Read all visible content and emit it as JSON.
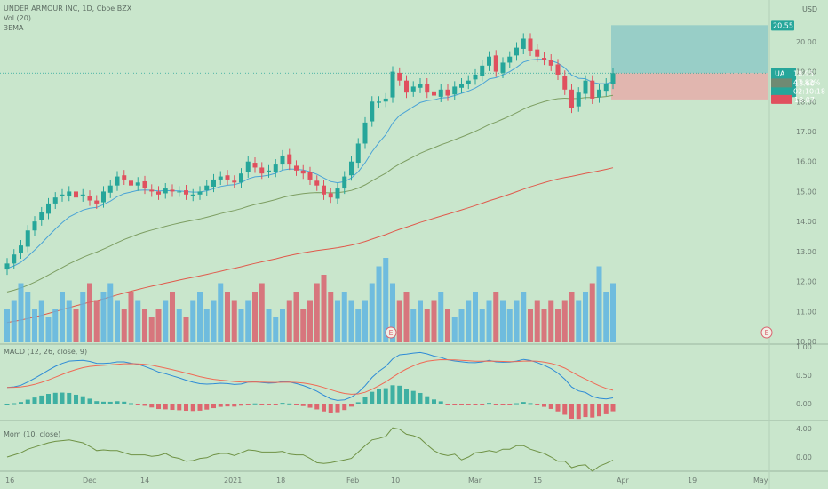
{
  "legend": {
    "symbol": "UNDER ARMOUR INC, 1D, Cboe BZX",
    "vol": "Vol (20)",
    "ema": "3EMA",
    "macd": "MACD (12, 26, close, 9)",
    "mom": "Mom (10, close)"
  },
  "price_axis": {
    "currency": "USD",
    "ticks": [
      "20.00",
      "19.00",
      "18.00",
      "17.00",
      "16.00",
      "15.00",
      "14.00",
      "13.00",
      "12.00",
      "11.00",
      "10.00"
    ],
    "tags": {
      "target": "20.55",
      "symbol": "UA",
      "last": "18.95",
      "change": "47.82%",
      "countdown": "02:10:18",
      "ema_value": "18.60",
      "stop": "18.07"
    }
  },
  "macd_axis": {
    "ticks": [
      "1.00",
      "0.50",
      "0.00"
    ]
  },
  "mom_axis": {
    "ticks": [
      "4.00",
      "0.00"
    ]
  },
  "time_axis": {
    "labels": [
      "16",
      "Dec",
      "14",
      "2021",
      "18",
      "Feb",
      "10",
      "Mar",
      "15",
      "Apr",
      "19",
      "May"
    ]
  },
  "event_markers": [
    "E",
    "E"
  ],
  "colors": {
    "background": "#c9e6cc",
    "up": "#5fb4e0",
    "down": "#d9626e",
    "ema_fast": "#4aa3d6",
    "ema_mid": "#7d9e62",
    "ema_slow": "#e05a4c",
    "accent": "#26a69a",
    "stop": "#e0505e"
  },
  "chart_data": {
    "type": "candlestick",
    "x_range": [
      "2020-11-16",
      "2021-05-10"
    ],
    "ylim": [
      10.0,
      20.5
    ],
    "closes": [
      12.6,
      12.9,
      13.2,
      13.7,
      14.0,
      14.3,
      14.6,
      14.8,
      14.9,
      15.0,
      14.8,
      14.9,
      14.7,
      14.6,
      15.0,
      15.2,
      15.5,
      15.4,
      15.2,
      15.3,
      15.1,
      15.0,
      14.9,
      15.1,
      15.0,
      15.0,
      14.9,
      14.9,
      15.0,
      15.2,
      15.4,
      15.5,
      15.4,
      15.3,
      15.6,
      16.0,
      15.8,
      15.6,
      15.7,
      15.9,
      16.2,
      15.9,
      15.7,
      15.6,
      15.4,
      15.2,
      14.9,
      14.8,
      15.1,
      15.5,
      16.0,
      16.6,
      17.3,
      18.0,
      18.0,
      18.1,
      19.0,
      18.7,
      18.3,
      18.5,
      18.6,
      18.3,
      18.2,
      18.4,
      18.2,
      18.5,
      18.6,
      18.7,
      18.9,
      19.2,
      19.5,
      19.0,
      19.3,
      19.5,
      19.8,
      20.1,
      19.7,
      19.5,
      19.4,
      19.2,
      18.9,
      18.4,
      17.8,
      18.3,
      18.7,
      18.1,
      18.4,
      18.6,
      18.95
    ],
    "volume_rel": [
      0.4,
      0.5,
      0.7,
      0.6,
      0.4,
      0.5,
      0.3,
      0.4,
      0.6,
      0.5,
      0.4,
      0.6,
      0.7,
      0.5,
      0.6,
      0.7,
      0.5,
      0.4,
      0.6,
      0.5,
      0.4,
      0.3,
      0.4,
      0.5,
      0.6,
      0.4,
      0.3,
      0.5,
      0.6,
      0.4,
      0.5,
      0.7,
      0.6,
      0.5,
      0.4,
      0.5,
      0.6,
      0.7,
      0.4,
      0.3,
      0.4,
      0.5,
      0.6,
      0.4,
      0.5,
      0.7,
      0.8,
      0.6,
      0.5,
      0.6,
      0.5,
      0.4,
      0.5,
      0.7,
      0.9,
      1.0,
      0.7,
      0.5,
      0.6,
      0.4,
      0.5,
      0.4,
      0.5,
      0.6,
      0.4,
      0.3,
      0.4,
      0.5,
      0.6,
      0.4,
      0.5,
      0.6,
      0.5,
      0.4,
      0.5,
      0.6,
      0.4,
      0.5,
      0.4,
      0.5,
      0.4,
      0.5,
      0.6,
      0.5,
      0.6,
      0.7,
      0.9,
      0.6,
      0.7
    ],
    "macd_range": [
      -0.25,
      1.0
    ],
    "mom_range": [
      -1.5,
      4.5
    ]
  }
}
